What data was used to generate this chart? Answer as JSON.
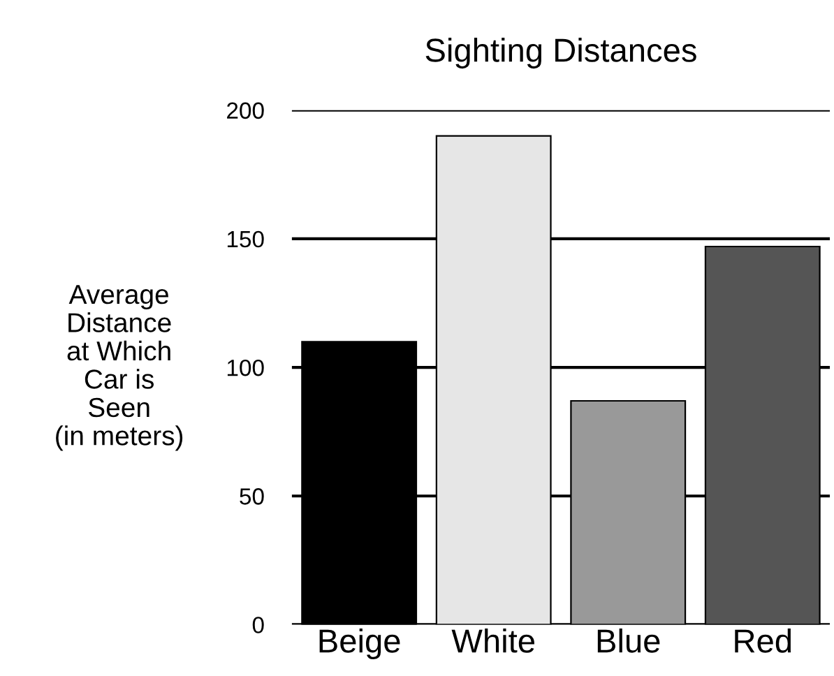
{
  "chart_data": {
    "type": "bar",
    "title": "Sighting Distances",
    "ylabel": "Average\nDistance\nat Which\nCar is\nSeen\n(in meters)",
    "categories": [
      "Beige",
      "White",
      "Blue",
      "Red"
    ],
    "values": [
      110,
      190,
      87,
      147
    ],
    "colors": [
      "#000000",
      "#e6e6e6",
      "#999999",
      "#555555"
    ],
    "ylim": [
      0,
      200
    ],
    "yticks": [
      0,
      50,
      100,
      150,
      200
    ],
    "grid": "y"
  }
}
